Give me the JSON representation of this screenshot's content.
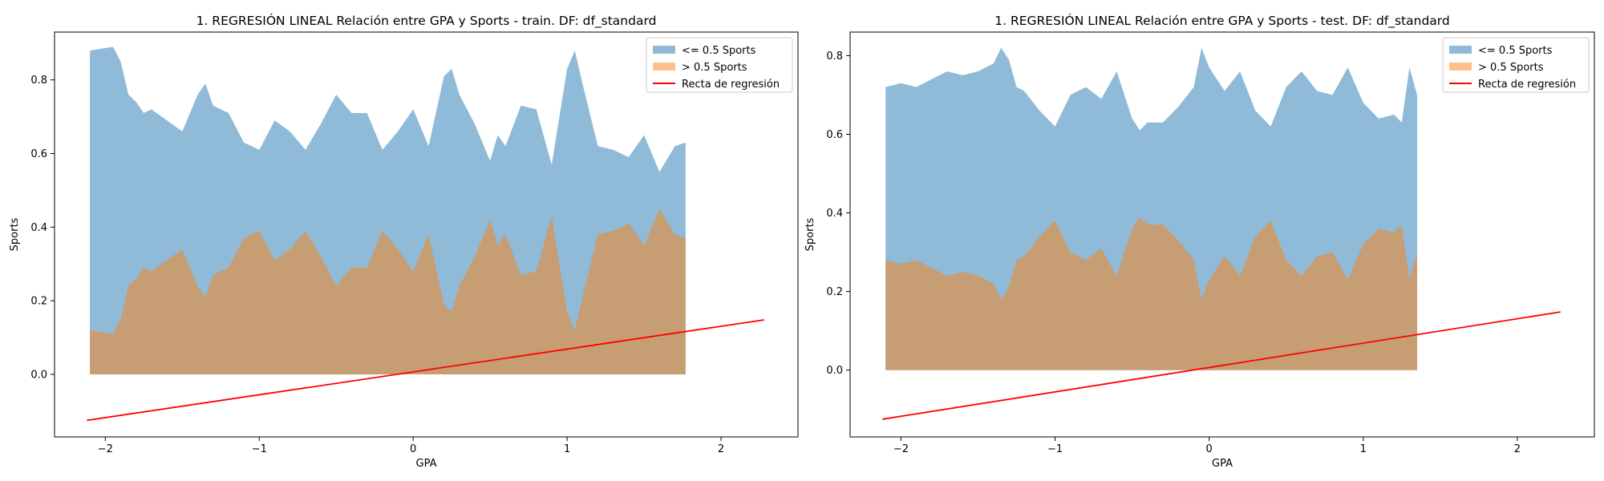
{
  "chart_data": [
    {
      "type": "area",
      "title": "1. REGRESIÓN LINEAL Relación entre GPA y Sports - train. DF: df_standard",
      "xlabel": "GPA",
      "ylabel": "Sports",
      "xlim": [
        -2.33,
        2.5
      ],
      "ylim": [
        -0.17,
        0.93
      ],
      "xticks": [
        -2,
        -1,
        0,
        1,
        2
      ],
      "xtick_labels": [
        "−2",
        "−1",
        "0",
        "1",
        "2"
      ],
      "yticks": [
        0.0,
        0.2,
        0.4,
        0.6,
        0.8
      ],
      "ytick_labels": [
        "0.0",
        "0.2",
        "0.4",
        "0.6",
        "0.8"
      ],
      "legend_position": "top-right",
      "series": [
        {
          "name": "<= 0.5 Sports",
          "kind": "area",
          "color": "#1f77b4",
          "x": [
            -2.1,
            -1.95,
            -1.9,
            -1.85,
            -1.8,
            -1.75,
            -1.7,
            -1.6,
            -1.5,
            -1.4,
            -1.35,
            -1.3,
            -1.2,
            -1.1,
            -1.0,
            -0.9,
            -0.8,
            -0.7,
            -0.6,
            -0.5,
            -0.4,
            -0.3,
            -0.2,
            -0.1,
            0.0,
            0.1,
            0.2,
            0.25,
            0.3,
            0.4,
            0.5,
            0.55,
            0.6,
            0.7,
            0.8,
            0.9,
            1.0,
            1.05,
            1.1,
            1.2,
            1.3,
            1.4,
            1.5,
            1.6,
            1.7,
            1.77
          ],
          "y": [
            0.88,
            0.89,
            0.85,
            0.76,
            0.74,
            0.71,
            0.72,
            0.69,
            0.66,
            0.76,
            0.79,
            0.73,
            0.71,
            0.63,
            0.61,
            0.69,
            0.66,
            0.61,
            0.68,
            0.76,
            0.71,
            0.71,
            0.61,
            0.66,
            0.72,
            0.62,
            0.81,
            0.83,
            0.76,
            0.68,
            0.58,
            0.65,
            0.62,
            0.73,
            0.72,
            0.57,
            0.83,
            0.88,
            0.79,
            0.62,
            0.61,
            0.59,
            0.65,
            0.55,
            0.62,
            0.63
          ]
        },
        {
          "name": "> 0.5 Sports",
          "kind": "area",
          "color": "#ff7f0e",
          "x": [
            -2.1,
            -1.95,
            -1.9,
            -1.85,
            -1.8,
            -1.75,
            -1.7,
            -1.6,
            -1.5,
            -1.4,
            -1.35,
            -1.3,
            -1.2,
            -1.1,
            -1.0,
            -0.9,
            -0.8,
            -0.7,
            -0.6,
            -0.5,
            -0.4,
            -0.3,
            -0.2,
            -0.1,
            0.0,
            0.1,
            0.2,
            0.25,
            0.3,
            0.4,
            0.5,
            0.55,
            0.6,
            0.7,
            0.8,
            0.9,
            1.0,
            1.05,
            1.1,
            1.2,
            1.3,
            1.4,
            1.5,
            1.6,
            1.7,
            1.77
          ],
          "y": [
            0.12,
            0.11,
            0.15,
            0.24,
            0.26,
            0.29,
            0.28,
            0.31,
            0.34,
            0.24,
            0.21,
            0.27,
            0.29,
            0.37,
            0.39,
            0.31,
            0.34,
            0.39,
            0.32,
            0.24,
            0.29,
            0.29,
            0.39,
            0.34,
            0.28,
            0.38,
            0.19,
            0.17,
            0.24,
            0.32,
            0.42,
            0.35,
            0.38,
            0.27,
            0.28,
            0.43,
            0.17,
            0.12,
            0.21,
            0.38,
            0.39,
            0.41,
            0.35,
            0.45,
            0.38,
            0.37
          ]
        },
        {
          "name": "Recta de regresión",
          "kind": "line",
          "color": "#ff0000",
          "x": [
            -2.12,
            2.28
          ],
          "y": [
            -0.125,
            0.148
          ]
        }
      ]
    },
    {
      "type": "area",
      "title": "1. REGRESIÓN LINEAL Relación entre GPA y Sports - test. DF: df_standard",
      "xlabel": "GPA",
      "ylabel": "Sports",
      "xlim": [
        -2.33,
        2.5
      ],
      "ylim": [
        -0.17,
        0.86
      ],
      "xticks": [
        -2,
        -1,
        0,
        1,
        2
      ],
      "xtick_labels": [
        "−2",
        "−1",
        "0",
        "1",
        "2"
      ],
      "yticks": [
        0.0,
        0.2,
        0.4,
        0.6,
        0.8
      ],
      "ytick_labels": [
        "0.0",
        "0.2",
        "0.4",
        "0.6",
        "0.8"
      ],
      "legend_position": "top-right",
      "series": [
        {
          "name": "<= 0.5 Sports",
          "kind": "area",
          "color": "#1f77b4",
          "x": [
            -2.1,
            -2.0,
            -1.9,
            -1.8,
            -1.7,
            -1.6,
            -1.5,
            -1.4,
            -1.35,
            -1.3,
            -1.25,
            -1.2,
            -1.1,
            -1.0,
            -0.9,
            -0.8,
            -0.7,
            -0.6,
            -0.5,
            -0.45,
            -0.4,
            -0.3,
            -0.2,
            -0.1,
            -0.05,
            0.0,
            0.1,
            0.2,
            0.3,
            0.4,
            0.5,
            0.6,
            0.7,
            0.8,
            0.9,
            1.0,
            1.1,
            1.2,
            1.25,
            1.3,
            1.35
          ],
          "y": [
            0.72,
            0.73,
            0.72,
            0.74,
            0.76,
            0.75,
            0.76,
            0.78,
            0.82,
            0.79,
            0.72,
            0.71,
            0.66,
            0.62,
            0.7,
            0.72,
            0.69,
            0.76,
            0.64,
            0.61,
            0.63,
            0.63,
            0.67,
            0.72,
            0.82,
            0.77,
            0.71,
            0.76,
            0.66,
            0.62,
            0.72,
            0.76,
            0.71,
            0.7,
            0.77,
            0.68,
            0.64,
            0.65,
            0.63,
            0.77,
            0.7
          ]
        },
        {
          "name": "> 0.5 Sports",
          "kind": "area",
          "color": "#ff7f0e",
          "x": [
            -2.1,
            -2.0,
            -1.9,
            -1.8,
            -1.7,
            -1.6,
            -1.5,
            -1.4,
            -1.35,
            -1.3,
            -1.25,
            -1.2,
            -1.1,
            -1.0,
            -0.9,
            -0.8,
            -0.7,
            -0.6,
            -0.5,
            -0.45,
            -0.4,
            -0.3,
            -0.2,
            -0.1,
            -0.05,
            0.0,
            0.1,
            0.2,
            0.3,
            0.4,
            0.5,
            0.6,
            0.7,
            0.8,
            0.9,
            1.0,
            1.1,
            1.2,
            1.25,
            1.3,
            1.35
          ],
          "y": [
            0.28,
            0.27,
            0.28,
            0.26,
            0.24,
            0.25,
            0.24,
            0.22,
            0.18,
            0.21,
            0.28,
            0.29,
            0.34,
            0.38,
            0.3,
            0.28,
            0.31,
            0.24,
            0.36,
            0.39,
            0.37,
            0.37,
            0.33,
            0.28,
            0.18,
            0.23,
            0.29,
            0.24,
            0.34,
            0.38,
            0.28,
            0.24,
            0.29,
            0.3,
            0.23,
            0.32,
            0.36,
            0.35,
            0.37,
            0.23,
            0.3
          ]
        },
        {
          "name": "Recta de regresión",
          "kind": "line",
          "color": "#ff0000",
          "x": [
            -2.12,
            2.28
          ],
          "y": [
            -0.125,
            0.148
          ]
        }
      ]
    }
  ]
}
